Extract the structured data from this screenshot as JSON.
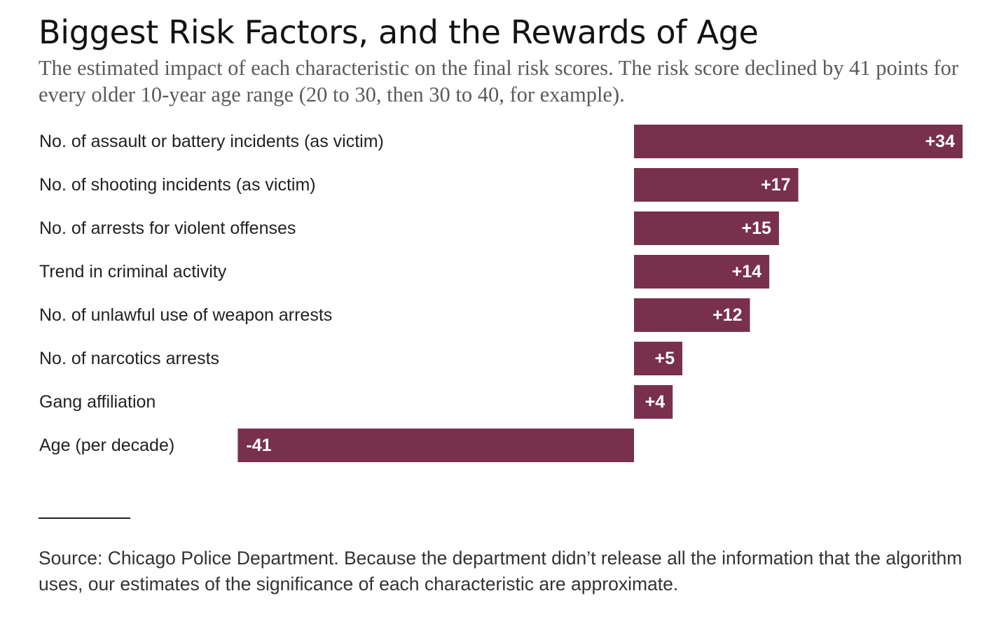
{
  "header": {
    "title": "Biggest Risk Factors, and the Rewards of Age",
    "subtitle": "The estimated impact of each characteristic on the final risk scores. The  risk score declined by 41 points for every older 10-year age range (20 to 30, then 30 to 40, for example)."
  },
  "chart_data": {
    "type": "bar",
    "orientation": "horizontal",
    "title": "Biggest Risk Factors, and the Rewards of Age",
    "categories": [
      "No. of assault or battery incidents (as victim)",
      "No. of shooting incidents (as victim)",
      "No. of arrests for violent offenses",
      "Trend in criminal activity",
      "No. of unlawful use of weapon arrests",
      "No. of narcotics arrests",
      "Gang affiliation",
      "Age (per decade)"
    ],
    "values": [
      34,
      17,
      15,
      14,
      12,
      5,
      4,
      -41
    ],
    "value_labels": [
      "+34",
      "+17",
      "+15",
      "+14",
      "+12",
      "+5",
      "+4",
      "-41"
    ],
    "xlim": [
      -41,
      34
    ],
    "grid": false,
    "legend": "none",
    "bar_color": "#78304d"
  },
  "footer": {
    "source": "Source: Chicago Police Department. Because the department didn’t release all the information that the algorithm uses, our estimates of the significance of each characteristic are approximate."
  }
}
